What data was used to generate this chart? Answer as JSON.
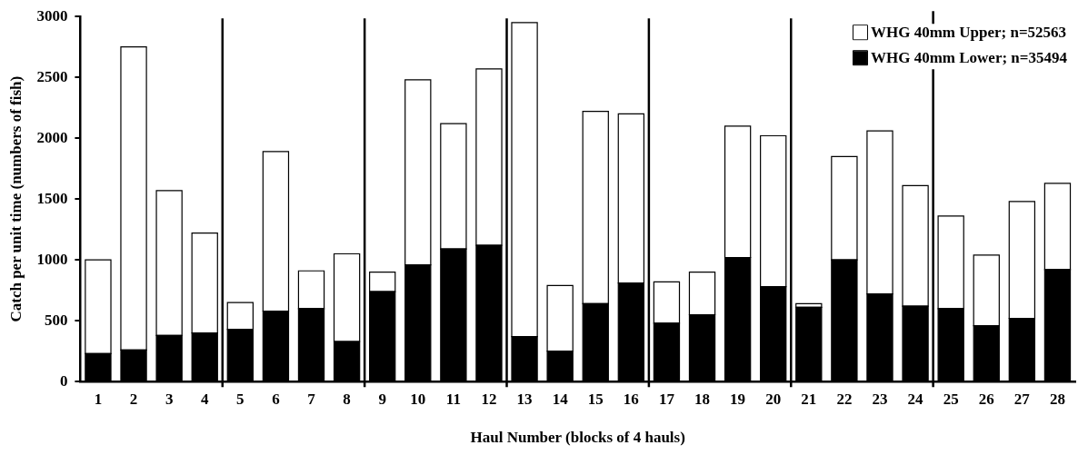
{
  "chart_data": {
    "type": "bar",
    "stacked": true,
    "xlabel": "Haul Number (blocks of 4 hauls)",
    "ylabel": "Catch per unit time (numbers of fish)",
    "x": [
      1,
      2,
      3,
      4,
      5,
      6,
      7,
      8,
      9,
      10,
      11,
      12,
      13,
      14,
      15,
      16,
      17,
      18,
      19,
      20,
      21,
      22,
      23,
      24,
      25,
      26,
      27,
      28
    ],
    "xlim": [
      0.5,
      28.5
    ],
    "xticks": [
      1,
      2,
      3,
      4,
      5,
      6,
      7,
      8,
      9,
      10,
      11,
      12,
      13,
      14,
      15,
      16,
      17,
      18,
      19,
      20,
      21,
      22,
      23,
      24,
      25,
      26,
      27,
      28
    ],
    "ylim": [
      0,
      3000
    ],
    "yticks": [
      0,
      500,
      1000,
      1500,
      2000,
      2500,
      3000
    ],
    "series": [
      {
        "name": "WHG 40mm Lower; n=35494",
        "color": "#000000",
        "values": [
          230,
          260,
          380,
          400,
          430,
          580,
          600,
          330,
          740,
          960,
          1090,
          1120,
          370,
          250,
          640,
          810,
          480,
          550,
          1020,
          780,
          610,
          1000,
          720,
          620,
          600,
          460,
          520,
          920
        ]
      },
      {
        "name": "WHG 40mm Upper; n=52563",
        "color": "#ffffff",
        "values": [
          770,
          2490,
          1190,
          820,
          220,
          1310,
          310,
          720,
          160,
          1520,
          1030,
          1450,
          2580,
          540,
          1580,
          1390,
          340,
          350,
          1080,
          1240,
          30,
          850,
          1340,
          990,
          760,
          580,
          960,
          710
        ]
      }
    ],
    "ref_lines": [
      {
        "axis": "x",
        "value": 4.5
      },
      {
        "axis": "x",
        "value": 8.5
      },
      {
        "axis": "x",
        "value": 12.5
      },
      {
        "axis": "x",
        "value": 16.5
      },
      {
        "axis": "x",
        "value": 20.5
      },
      {
        "axis": "x",
        "value": 24.5
      }
    ],
    "grid": false,
    "legend": "top right"
  }
}
